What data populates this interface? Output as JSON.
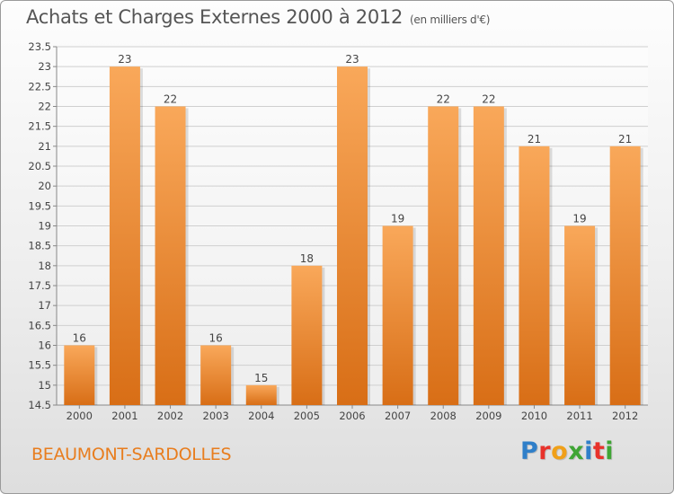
{
  "title": "Achats et Charges Externes 2000 à 2012",
  "unit_note": "(en milliers d'€)",
  "place_name": "BEAUMONT-SARDOLLES",
  "logo": {
    "letters": [
      "P",
      "r",
      "o",
      "x",
      "i",
      "t",
      "i"
    ],
    "colors": [
      "#2f7fc9",
      "#e8322b",
      "#f0a019",
      "#3fa535",
      "#2f7fc9",
      "#e8322b",
      "#3fa535"
    ]
  },
  "colors": {
    "bar_light": "#f9a85a",
    "bar_dark": "#d86e16",
    "grid": "#cfcfcf",
    "text": "#444444"
  },
  "chart_data": {
    "type": "bar",
    "title": "Achats et Charges Externes 2000 à 2012",
    "categories": [
      "2000",
      "2001",
      "2002",
      "2003",
      "2004",
      "2005",
      "2006",
      "2007",
      "2008",
      "2009",
      "2010",
      "2011",
      "2012"
    ],
    "values": [
      16,
      23,
      22,
      16,
      15,
      18,
      23,
      19,
      22,
      22,
      21,
      19,
      21
    ],
    "data_labels": [
      "16",
      "23",
      "22",
      "16",
      "15",
      "18",
      "23",
      "19",
      "22",
      "22",
      "21",
      "19",
      "21"
    ],
    "ylim": [
      14.5,
      23.5
    ],
    "yticks": [
      "14.5",
      "15",
      "15.5",
      "16",
      "16.5",
      "17",
      "17.5",
      "18",
      "18.5",
      "19",
      "19.5",
      "20",
      "20.5",
      "21",
      "21.5",
      "22",
      "22.5",
      "23",
      "23.5"
    ],
    "grid": true,
    "xlabel": "",
    "ylabel": ""
  }
}
